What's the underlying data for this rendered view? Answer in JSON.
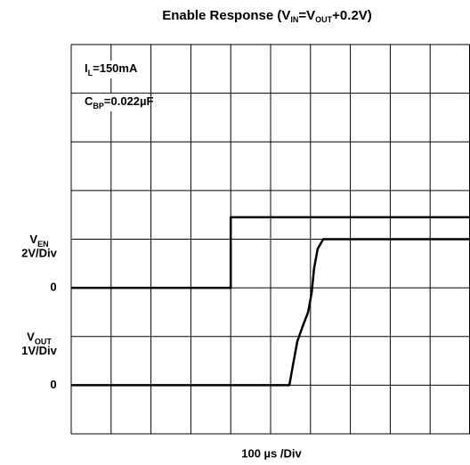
{
  "chart_data": {
    "type": "line",
    "title": [
      "Enable Response (V",
      "IN",
      "=V",
      "OUT",
      "+0.2V)"
    ],
    "x_label": "100 µs /Div",
    "xlim": [
      0,
      1000
    ],
    "grid": true,
    "annotations": [
      {
        "text": [
          "I",
          "L",
          "=150mA"
        ]
      },
      {
        "text": [
          "C",
          "BP",
          "=0.022µF"
        ]
      }
    ],
    "y2lim": [
      -6,
      10
    ],
    "y2ticks": [
      0
    ],
    "ylim": [
      -1,
      7
    ],
    "yticks": [
      0
    ],
    "series": [
      {
        "name": [
          "V",
          "EN"
        ],
        "scale": "2V/Div",
        "axis": "y2",
        "color": "#000000",
        "x": [
          0,
          400,
          400,
          1000
        ],
        "values": [
          0,
          0,
          2.9,
          2.9
        ]
      },
      {
        "name": [
          "V",
          "OUT"
        ],
        "scale": "1V/Div",
        "color": "#000000",
        "x": [
          0,
          547,
          558,
          567,
          580,
          594,
          603,
          609,
          618,
          632,
          1000
        ],
        "values": [
          0,
          0,
          0.5,
          0.9,
          1.2,
          1.5,
          1.9,
          2.4,
          2.8,
          3.0,
          3.0
        ]
      }
    ]
  }
}
